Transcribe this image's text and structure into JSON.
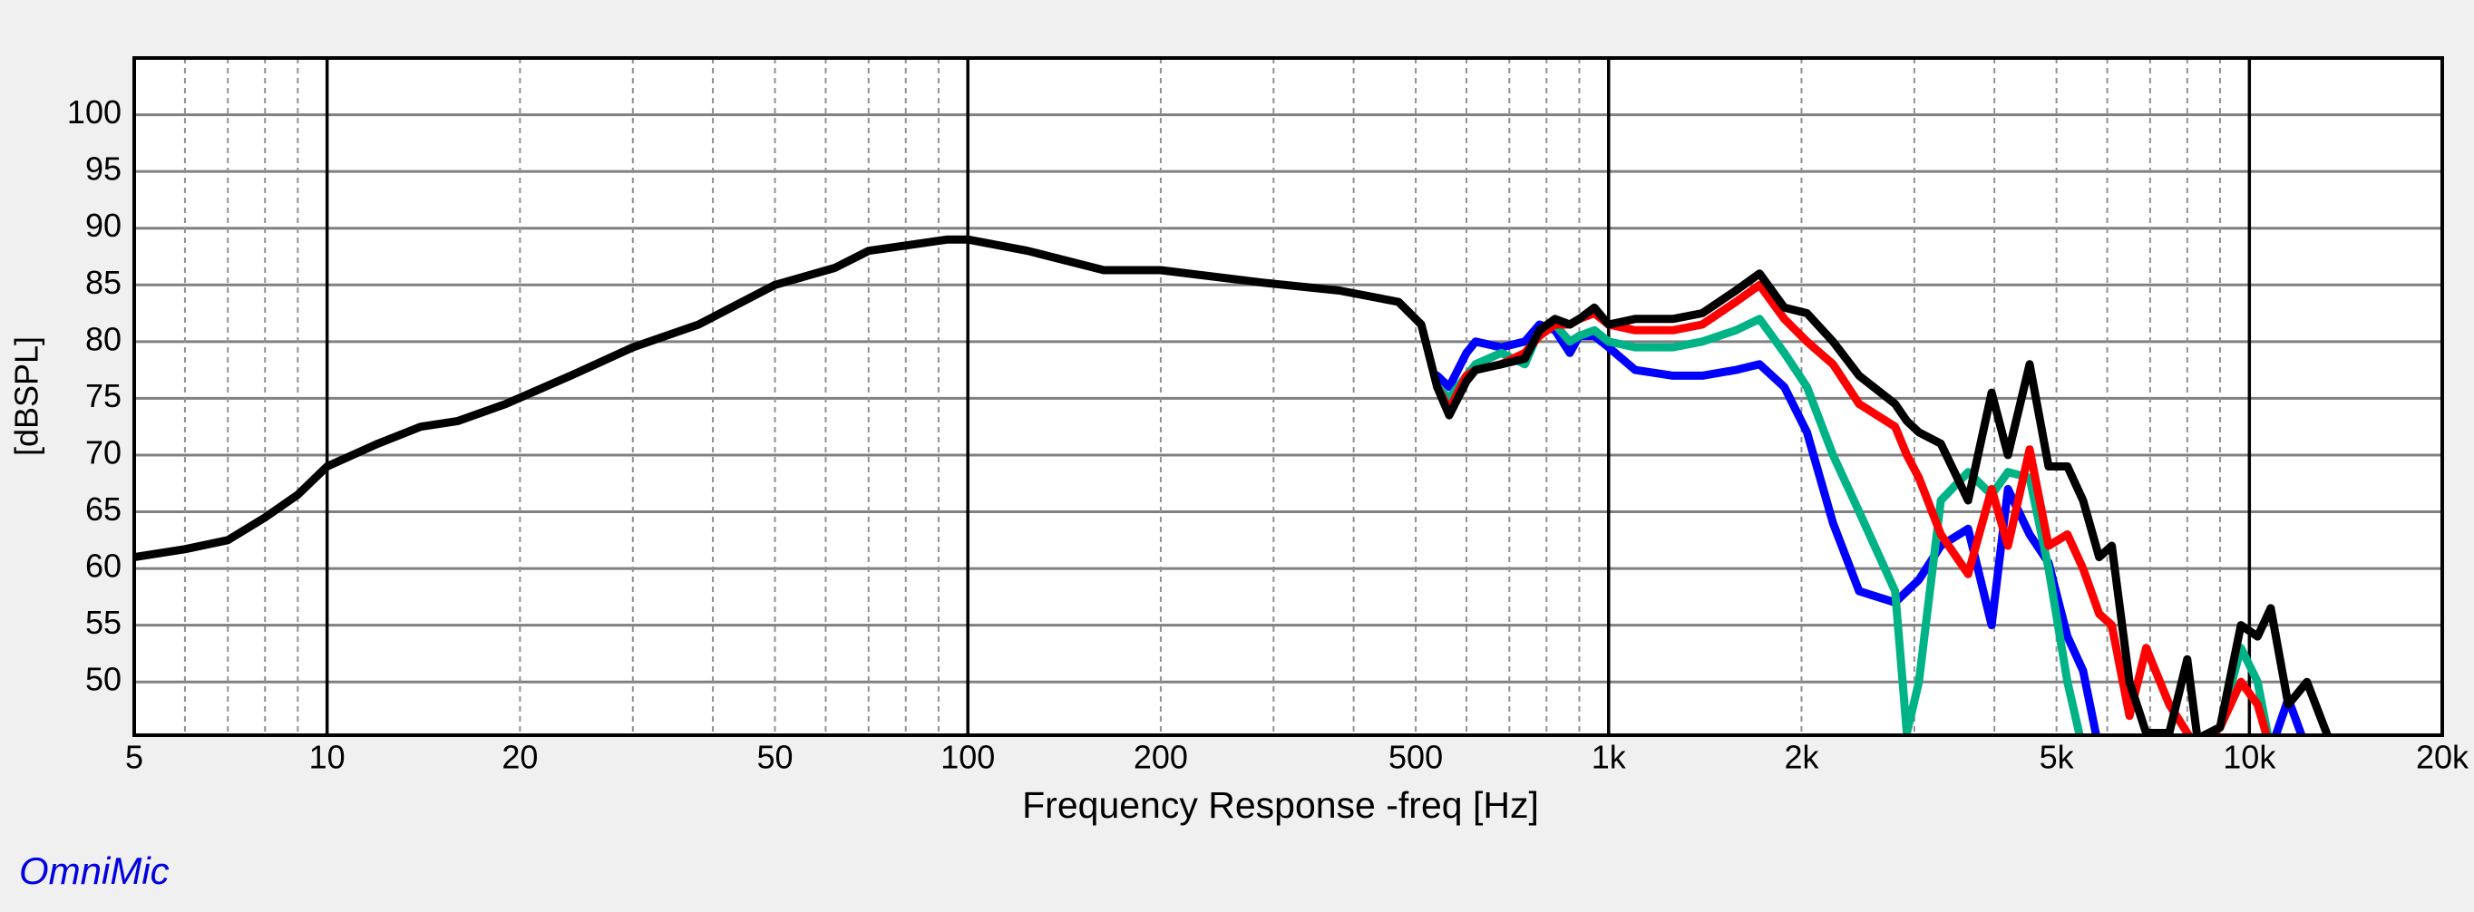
{
  "chart_data": {
    "type": "line",
    "xlabel": "Frequency Response -freq [Hz]",
    "ylabel": "[dBSPL]",
    "watermark": "OmniMic",
    "xscale": "log",
    "xlim": [
      5,
      20000
    ],
    "ylim": [
      45.3,
      105
    ],
    "xticks": [
      5,
      10,
      20,
      50,
      100,
      200,
      500,
      {
        "value": 1000,
        "label": "1k"
      },
      {
        "value": 2000,
        "label": "2k"
      },
      {
        "value": 5000,
        "label": "5k"
      },
      {
        "value": 10000,
        "label": "10k"
      },
      {
        "value": 20000,
        "label": "20k"
      }
    ],
    "yticks": [
      50,
      55,
      60,
      65,
      70,
      75,
      80,
      85,
      90,
      95,
      100
    ],
    "xgrid_major": [
      10,
      100,
      1000,
      10000
    ],
    "xgrid_minor": [
      6,
      7,
      8,
      9,
      20,
      30,
      40,
      50,
      60,
      70,
      80,
      90,
      200,
      300,
      400,
      500,
      600,
      700,
      800,
      900,
      2000,
      3000,
      4000,
      5000,
      6000,
      7000,
      8000,
      9000
    ],
    "grid": true,
    "x": [
      5,
      6,
      7,
      8,
      9,
      10,
      12,
      14,
      16,
      19,
      24,
      30,
      38,
      50,
      62,
      70,
      93,
      100,
      124,
      163,
      200,
      288,
      380,
      470,
      510,
      540,
      564,
      600,
      620,
      680,
      740,
      780,
      825,
      870,
      900,
      950,
      1000,
      1100,
      1260,
      1400,
      1580,
      1720,
      1880,
      2040,
      2240,
      2460,
      2800,
      2920,
      3050,
      3300,
      3640,
      3960,
      4200,
      4540,
      4860,
      5200,
      5500,
      5830,
      6100,
      6500,
      6900,
      7500,
      8000,
      8300,
      9000,
      9700,
      10300,
      10800,
      11500,
      12300,
      13300,
      15000,
      20000
    ],
    "series": [
      {
        "color": "#0000ff",
        "values": [
          null,
          null,
          null,
          null,
          null,
          null,
          null,
          null,
          null,
          null,
          null,
          null,
          null,
          null,
          null,
          null,
          null,
          null,
          null,
          null,
          null,
          null,
          null,
          null,
          null,
          77,
          76,
          79,
          80,
          79.5,
          80,
          81.5,
          81,
          79,
          80.5,
          80.5,
          79.5,
          77.5,
          77,
          77,
          77.5,
          78,
          76,
          72,
          64,
          58,
          57,
          58,
          59,
          62,
          63.5,
          55,
          67,
          63,
          60.5,
          54,
          51,
          44,
          44,
          44,
          44,
          44,
          44,
          44,
          44,
          44,
          45,
          44,
          48.5,
          44,
          44,
          44,
          44
        ]
      },
      {
        "color": "#00b386",
        "values": [
          null,
          null,
          null,
          null,
          null,
          null,
          null,
          null,
          null,
          null,
          null,
          null,
          null,
          null,
          null,
          null,
          null,
          null,
          null,
          null,
          null,
          null,
          null,
          null,
          null,
          76,
          75,
          77,
          78,
          79,
          78,
          81,
          81.5,
          80,
          80.5,
          81,
          80,
          79.5,
          79.5,
          80,
          81,
          82,
          79,
          76,
          70,
          65,
          58,
          45.5,
          50,
          66,
          68.5,
          66.5,
          68.5,
          68,
          60,
          50,
          44,
          44,
          44,
          44,
          44,
          44,
          44,
          44,
          46,
          53,
          50,
          44,
          44,
          44,
          44,
          44,
          44
        ]
      },
      {
        "color": "#ff0000",
        "values": [
          null,
          null,
          null,
          null,
          null,
          null,
          null,
          null,
          null,
          null,
          null,
          null,
          null,
          null,
          null,
          null,
          null,
          null,
          null,
          null,
          null,
          null,
          null,
          null,
          null,
          76,
          74,
          77,
          77.5,
          78,
          79,
          80.5,
          81.5,
          81.5,
          82,
          82.5,
          81.5,
          81,
          81,
          81.5,
          83.5,
          85,
          82,
          80,
          78,
          74.5,
          72.5,
          70,
          68,
          63,
          59.5,
          67,
          62,
          70.5,
          62,
          63,
          60,
          56,
          55,
          47,
          53,
          48,
          45.5,
          44,
          46,
          50,
          48,
          44,
          44,
          44,
          44,
          44,
          44
        ]
      },
      {
        "color": "#000000",
        "values": [
          61,
          61.7,
          62.5,
          64.5,
          66.5,
          69,
          71,
          72.5,
          73,
          74.5,
          77,
          79.5,
          81.5,
          85,
          86.5,
          88,
          89,
          89,
          88,
          86.3,
          86.3,
          85.2,
          84.5,
          83.5,
          81.5,
          76,
          73.5,
          76.5,
          77.5,
          78,
          78.5,
          81,
          82,
          81.5,
          82,
          83,
          81.5,
          82,
          82,
          82.5,
          84.5,
          86,
          83,
          82.5,
          80,
          77,
          74.5,
          73,
          72,
          71,
          66,
          75.5,
          70,
          78,
          69,
          69,
          66,
          61,
          62,
          50,
          45.5,
          45.5,
          52,
          45,
          46,
          55,
          54,
          56.5,
          48,
          50,
          45,
          44,
          44
        ]
      }
    ]
  }
}
